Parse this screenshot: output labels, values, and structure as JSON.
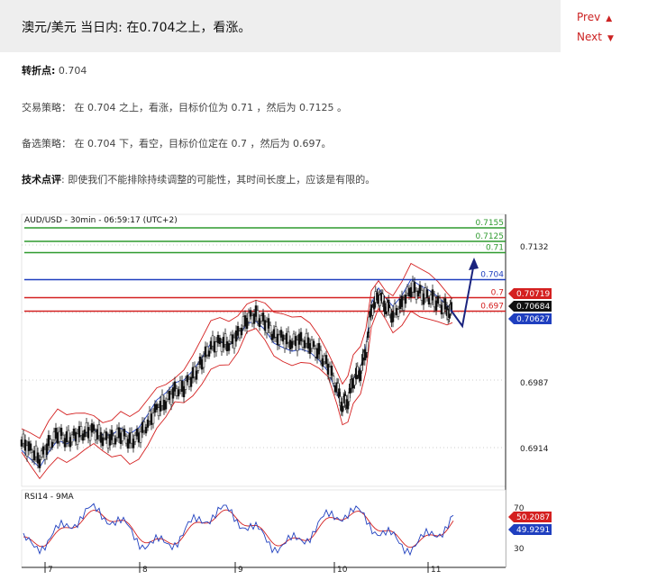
{
  "header": {
    "title": "澳元/美元 当日内: 在0.704之上，看涨。",
    "prev_label": "Prev",
    "next_label": "Next"
  },
  "info": {
    "pivot_label": "转折点:",
    "pivot_value": "0.704",
    "strategy_label": "交易策略：",
    "strategy_text": "在 0.704 之上，看涨，目标价位为 0.71 ，然后为 0.7125 。",
    "alt_label": "备选策略：",
    "alt_text": "在 0.704 下，看空，目标价位定在 0.7 ，然后为 0.697。",
    "comment_label": "技术点评",
    "comment_text": ": 即使我们不能排除持续调整的可能性，其时间长度上，应该是有限的。"
  },
  "chart_data": {
    "type": "candlestick",
    "title": "AUD/USD - 30min - 06:59:17 (UTC+2)",
    "price_ticks": [
      "0.7132",
      "0.6987",
      "0.6914"
    ],
    "levels": [
      {
        "label": "0.7155",
        "value": 0.7155,
        "color": "#2e9a2e"
      },
      {
        "label": "0.7125",
        "value": 0.7125,
        "color": "#2e9a2e"
      },
      {
        "label": "0.71",
        "value": 0.71,
        "color": "#2e9a2e"
      },
      {
        "label": "0.704",
        "value": 0.704,
        "color": "#1f3fbf"
      },
      {
        "label": "0.7",
        "value": 0.7,
        "color": "#d42020"
      },
      {
        "label": "0.697",
        "value": 0.697,
        "color": "#d42020"
      }
    ],
    "price_tags": [
      {
        "label": "0.70719",
        "bg": "#d42020"
      },
      {
        "label": "0.70684",
        "bg": "#111111"
      },
      {
        "label": "0.70627",
        "bg": "#1f3fbf"
      }
    ],
    "dates": [
      "7",
      "8",
      "9",
      "10",
      "11"
    ],
    "rsi_title": "RSI14 - 9MA",
    "rsi_ticks": [
      "70",
      "30"
    ],
    "rsi_tags": [
      {
        "label": "50.2087",
        "bg": "#d42020"
      },
      {
        "label": "49.9291",
        "bg": "#1f3fbf"
      }
    ]
  }
}
